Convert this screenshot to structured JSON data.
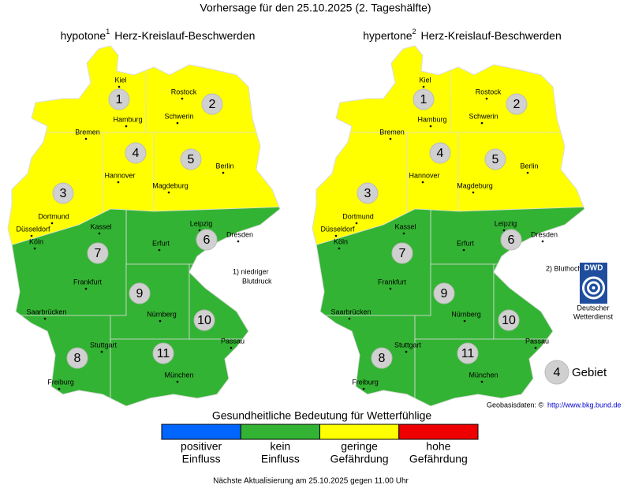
{
  "header": {
    "title": "Vorhersage für den 25.10.2025 (2. Tageshälfte)"
  },
  "maps": [
    {
      "title": "hypotone",
      "footnote_mark": "1",
      "subtitle": "Herz-Kreislauf-Beschwerden",
      "note": [
        "1) niedriger",
        "Blutdruck"
      ],
      "regions": [
        {
          "label": "1",
          "color": "#ffff00"
        },
        {
          "label": "2",
          "color": "#ffff00"
        },
        {
          "label": "3",
          "color": "#ffff00"
        },
        {
          "label": "4",
          "color": "#ffff00"
        },
        {
          "label": "5",
          "color": "#ffff00"
        },
        {
          "label": "6",
          "color": "#33b333"
        },
        {
          "label": "7",
          "color": "#33b333"
        },
        {
          "label": "8",
          "color": "#33b333"
        },
        {
          "label": "9",
          "color": "#33b333"
        },
        {
          "label": "10",
          "color": "#33b333"
        },
        {
          "label": "11",
          "color": "#33b333"
        }
      ]
    },
    {
      "title": "hypertone",
      "footnote_mark": "2",
      "subtitle": "Herz-Kreislauf-Beschwerden",
      "note": [
        "2) Bluthochdruck"
      ],
      "regions": [
        {
          "label": "1",
          "color": "#ffff00"
        },
        {
          "label": "2",
          "color": "#ffff00"
        },
        {
          "label": "3",
          "color": "#ffff00"
        },
        {
          "label": "4",
          "color": "#ffff00"
        },
        {
          "label": "5",
          "color": "#ffff00"
        },
        {
          "label": "6",
          "color": "#33b333"
        },
        {
          "label": "7",
          "color": "#33b333"
        },
        {
          "label": "8",
          "color": "#33b333"
        },
        {
          "label": "9",
          "color": "#33b333"
        },
        {
          "label": "10",
          "color": "#33b333"
        },
        {
          "label": "11",
          "color": "#33b333"
        }
      ]
    }
  ],
  "cities": [
    "Kiel",
    "Rostock",
    "Hamburg",
    "Schwerin",
    "Bremen",
    "Hannover",
    "Berlin",
    "Magdeburg",
    "Dortmund",
    "Düsseldorf",
    "Köln",
    "Kassel",
    "Leipzig",
    "Dresden",
    "Erfurt",
    "Frankfurt",
    "Saarbrücken",
    "Nürnberg",
    "Passau",
    "Stuttgart",
    "Freiburg",
    "München"
  ],
  "key": {
    "label": "4",
    "text": "Gebiet"
  },
  "logo": {
    "abbr": "DWD",
    "lines": [
      "Deutscher",
      "Wetterdienst"
    ]
  },
  "credit": {
    "text": "Geobasisdaten: ©",
    "link": "http://www.bkg.bund.de"
  },
  "legend": {
    "title": "Gesundheitliche Bedeutung für Wetterfühlige",
    "items": [
      {
        "color": "#0066ff",
        "lines": [
          "positiver",
          "Einfluss"
        ]
      },
      {
        "color": "#33b333",
        "lines": [
          "kein",
          "Einfluss"
        ]
      },
      {
        "color": "#ffff00",
        "lines": [
          "geringe",
          "Gefährdung"
        ]
      },
      {
        "color": "#ee0000",
        "lines": [
          "hohe",
          "Gefährdung"
        ]
      }
    ]
  },
  "footer": "Nächste Aktualisierung am 25.10.2025 gegen 11.00 Uhr"
}
